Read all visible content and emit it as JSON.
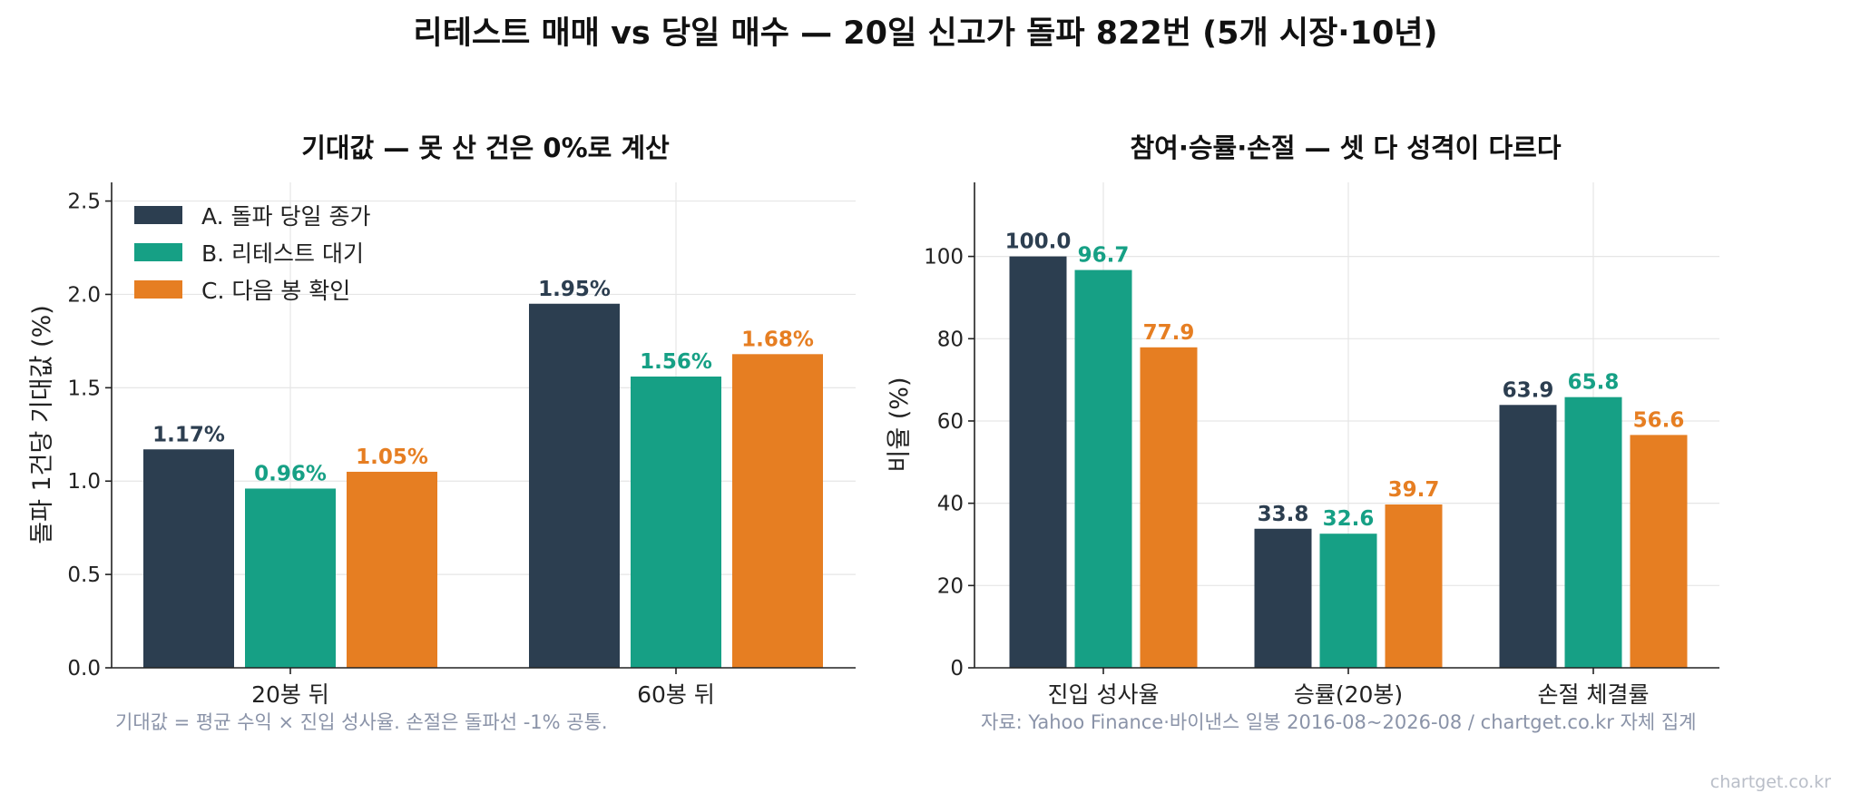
{
  "title": "리테스트 매매 vs 당일 매수 — 20일 신고가 돌파 822번 (5개 시장·10년)",
  "colors": {
    "A": "#2c3e50",
    "B": "#16a085",
    "C": "#e67e22"
  },
  "left_note": "기대값 = 평균 수익 × 진입 성사율. 손절은 돌파선 -1% 공통.",
  "right_note": "자료: Yahoo Finance·바이낸스 일봉 2016-08~2026-08 / chartget.co.kr 자체 집계",
  "watermark": "chartget.co.kr",
  "chart_data": [
    {
      "type": "bar",
      "title": "기대값 — 못 산 건은 0%로 계산",
      "xlabel": "",
      "ylabel": "돌파 1건당 기대값 (%)",
      "categories": [
        "20봉 뒤",
        "60봉 뒤"
      ],
      "ylim": [
        0,
        2.6
      ],
      "yticks": [
        0.0,
        0.5,
        1.0,
        1.5,
        2.0,
        2.5
      ],
      "ytick_labels": [
        "0.0",
        "0.5",
        "1.0",
        "1.5",
        "2.0",
        "2.5"
      ],
      "grid": true,
      "legend_position": "top-left",
      "series": [
        {
          "name": "A. 돌파 당일 종가",
          "values": [
            1.17,
            1.95
          ],
          "labels": [
            "1.17%",
            "1.95%"
          ]
        },
        {
          "name": "B. 리테스트 대기",
          "values": [
            0.96,
            1.56
          ],
          "labels": [
            "0.96%",
            "1.56%"
          ]
        },
        {
          "name": "C. 다음 봉 확인",
          "values": [
            1.05,
            1.68
          ],
          "labels": [
            "1.05%",
            "1.68%"
          ]
        }
      ]
    },
    {
      "type": "bar",
      "title": "참여·승률·손절 — 셋 다 성격이 다르다",
      "xlabel": "",
      "ylabel": "비율 (%)",
      "categories": [
        "진입 성사율",
        "승률(20봉)",
        "손절 체결률"
      ],
      "ylim": [
        0,
        118
      ],
      "yticks": [
        0,
        20,
        40,
        60,
        80,
        100
      ],
      "ytick_labels": [
        "0",
        "20",
        "40",
        "60",
        "80",
        "100"
      ],
      "grid": true,
      "series": [
        {
          "values": [
            100.0,
            33.8,
            63.9
          ],
          "labels": [
            "100.0",
            "33.8",
            "63.9"
          ]
        },
        {
          "values": [
            96.7,
            32.6,
            65.8
          ],
          "labels": [
            "96.7",
            "32.6",
            "65.8"
          ]
        },
        {
          "values": [
            77.9,
            39.7,
            56.6
          ],
          "labels": [
            "77.9",
            "39.7",
            "56.6"
          ]
        }
      ]
    }
  ]
}
